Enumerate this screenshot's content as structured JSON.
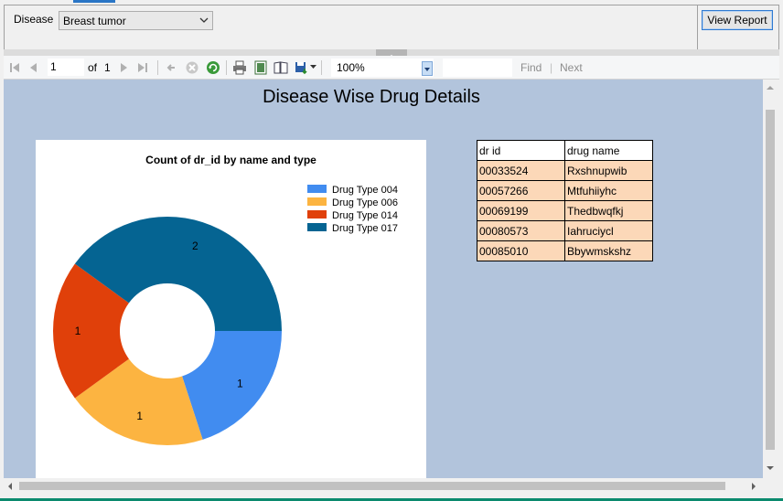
{
  "params": {
    "disease_label": "Disease",
    "disease_value": "Breast tumor",
    "view_report_label": "View Report"
  },
  "toolbar": {
    "current_page": "1",
    "of_label": "of",
    "total_pages": "1",
    "zoom": "100%",
    "find_label": "Find",
    "separator": "|",
    "next_label": "Next",
    "icons": [
      "first-page-icon",
      "prev-page-icon",
      "next-page-icon",
      "last-page-icon",
      "back-icon",
      "stop-icon",
      "refresh-icon",
      "print-icon",
      "print-layout-icon",
      "page-setup-icon",
      "export-icon"
    ]
  },
  "report": {
    "title": "Disease Wise Drug Details"
  },
  "chart_data": {
    "type": "pie",
    "title": "Count of dr_id by name and type",
    "labels": [
      "Drug Type 004",
      "Drug Type 006",
      "Drug Type 014",
      "Drug Type 017"
    ],
    "values": [
      1,
      1,
      1,
      2
    ],
    "colors": [
      "#418cf0",
      "#fcb441",
      "#e0400a",
      "#056492"
    ],
    "legend": "top-right",
    "donut": true
  },
  "table": {
    "headers": [
      "dr id",
      "drug name"
    ],
    "rows": [
      [
        "00033524",
        "Rxshnupwib"
      ],
      [
        "00057266",
        "Mtfuhiiyhc"
      ],
      [
        "00069199",
        "Thedbwqfkj"
      ],
      [
        "00080573",
        "Iahruciycl"
      ],
      [
        "00085010",
        "Bbywmskshz"
      ]
    ],
    "row_color": "#fcd8b8"
  },
  "colors": {
    "report_bg": "#b2c4dc",
    "accent": "#2f7ad1"
  }
}
